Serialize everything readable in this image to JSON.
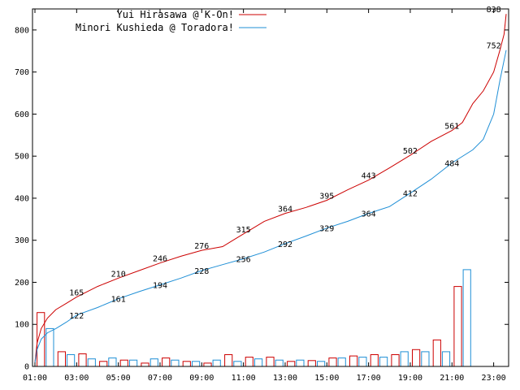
{
  "chart_data": {
    "type": "line",
    "title": "",
    "xlabel": "",
    "ylabel": "",
    "ylim": [
      0,
      850
    ],
    "grid": false,
    "legend_placement": "top-left",
    "y_ticks": [
      0,
      100,
      200,
      300,
      400,
      500,
      600,
      700,
      800
    ],
    "y_tick_labels": [
      "0",
      "100",
      "200",
      "300",
      "400",
      "500",
      "600",
      "700",
      "800"
    ],
    "x_tick_labels": [
      "01:00",
      "03:00",
      "05:00",
      "07:00",
      "09:00",
      "11:00",
      "13:00",
      "15:00",
      "17:00",
      "19:00",
      "21:00",
      "23:00"
    ],
    "x_tick_hours": [
      0,
      2,
      4,
      6,
      8,
      10,
      12,
      14,
      16,
      18,
      20,
      22
    ],
    "x_range_hours": [
      0,
      22.6
    ],
    "series": [
      {
        "name": "Yui Hirasawa @ K-On!",
        "color": "#cc0000",
        "cumulative_x": [
          0,
          0.1,
          0.3,
          0.6,
          1,
          1.5,
          2,
          3,
          4,
          5,
          6,
          7,
          8,
          9,
          9.5,
          10,
          10.5,
          11,
          12,
          13,
          14,
          15,
          16,
          17,
          18,
          19,
          20,
          20.5,
          21,
          21.5,
          22,
          22.3,
          22.5,
          22.6
        ],
        "cumulative_y": [
          10,
          55,
          90,
          115,
          135,
          150,
          165,
          190,
          210,
          228,
          246,
          262,
          276,
          285,
          300,
          315,
          330,
          345,
          364,
          378,
          395,
          420,
          443,
          472,
          502,
          535,
          561,
          580,
          625,
          655,
          700,
          752,
          790,
          838
        ],
        "labels": [
          {
            "x": 2,
            "y": 165,
            "text": "165"
          },
          {
            "x": 4,
            "y": 210,
            "text": "210"
          },
          {
            "x": 6,
            "y": 246,
            "text": "246"
          },
          {
            "x": 8,
            "y": 276,
            "text": "276"
          },
          {
            "x": 10,
            "y": 315,
            "text": "315"
          },
          {
            "x": 12,
            "y": 364,
            "text": "364"
          },
          {
            "x": 14,
            "y": 395,
            "text": "395"
          },
          {
            "x": 16,
            "y": 443,
            "text": "443"
          },
          {
            "x": 18,
            "y": 502,
            "text": "502"
          },
          {
            "x": 20,
            "y": 561,
            "text": "561"
          },
          {
            "x": 22,
            "y": 752,
            "text": "752"
          },
          {
            "x": 22,
            "y": 838,
            "text": "838"
          }
        ],
        "hourly_bars": [
          128,
          35,
          30,
          12,
          15,
          8,
          20,
          12,
          8,
          28,
          22,
          22,
          12,
          14,
          20,
          25,
          28,
          28,
          40,
          63,
          190
        ]
      },
      {
        "name": "Minori Kushieda @ Toradora!",
        "color": "#1f8fd6",
        "cumulative_x": [
          0,
          0.1,
          0.3,
          0.6,
          1,
          1.5,
          2,
          3,
          4,
          5,
          6,
          7,
          8,
          9,
          10,
          11,
          12,
          13,
          14,
          15,
          16,
          17,
          18,
          19,
          20,
          21,
          21.5,
          22,
          22.3,
          22.6
        ],
        "cumulative_y": [
          8,
          40,
          65,
          80,
          90,
          105,
          122,
          140,
          161,
          178,
          194,
          210,
          228,
          242,
          256,
          272,
          292,
          310,
          329,
          345,
          364,
          380,
          412,
          445,
          484,
          515,
          540,
          600,
          680,
          752
        ],
        "labels": [
          {
            "x": 2,
            "y": 122,
            "text": "122"
          },
          {
            "x": 4,
            "y": 161,
            "text": "161"
          },
          {
            "x": 6,
            "y": 194,
            "text": "194"
          },
          {
            "x": 8,
            "y": 228,
            "text": "228"
          },
          {
            "x": 10,
            "y": 256,
            "text": "256"
          },
          {
            "x": 12,
            "y": 292,
            "text": "292"
          },
          {
            "x": 14,
            "y": 329,
            "text": "329"
          },
          {
            "x": 16,
            "y": 364,
            "text": "364"
          },
          {
            "x": 18,
            "y": 412,
            "text": "412"
          },
          {
            "x": 20,
            "y": 484,
            "text": "484"
          }
        ],
        "hourly_bars": [
          90,
          28,
          18,
          20,
          15,
          18,
          15,
          12,
          15,
          12,
          18,
          15,
          15,
          12,
          20,
          22,
          22,
          35,
          35,
          35,
          230
        ]
      }
    ]
  }
}
